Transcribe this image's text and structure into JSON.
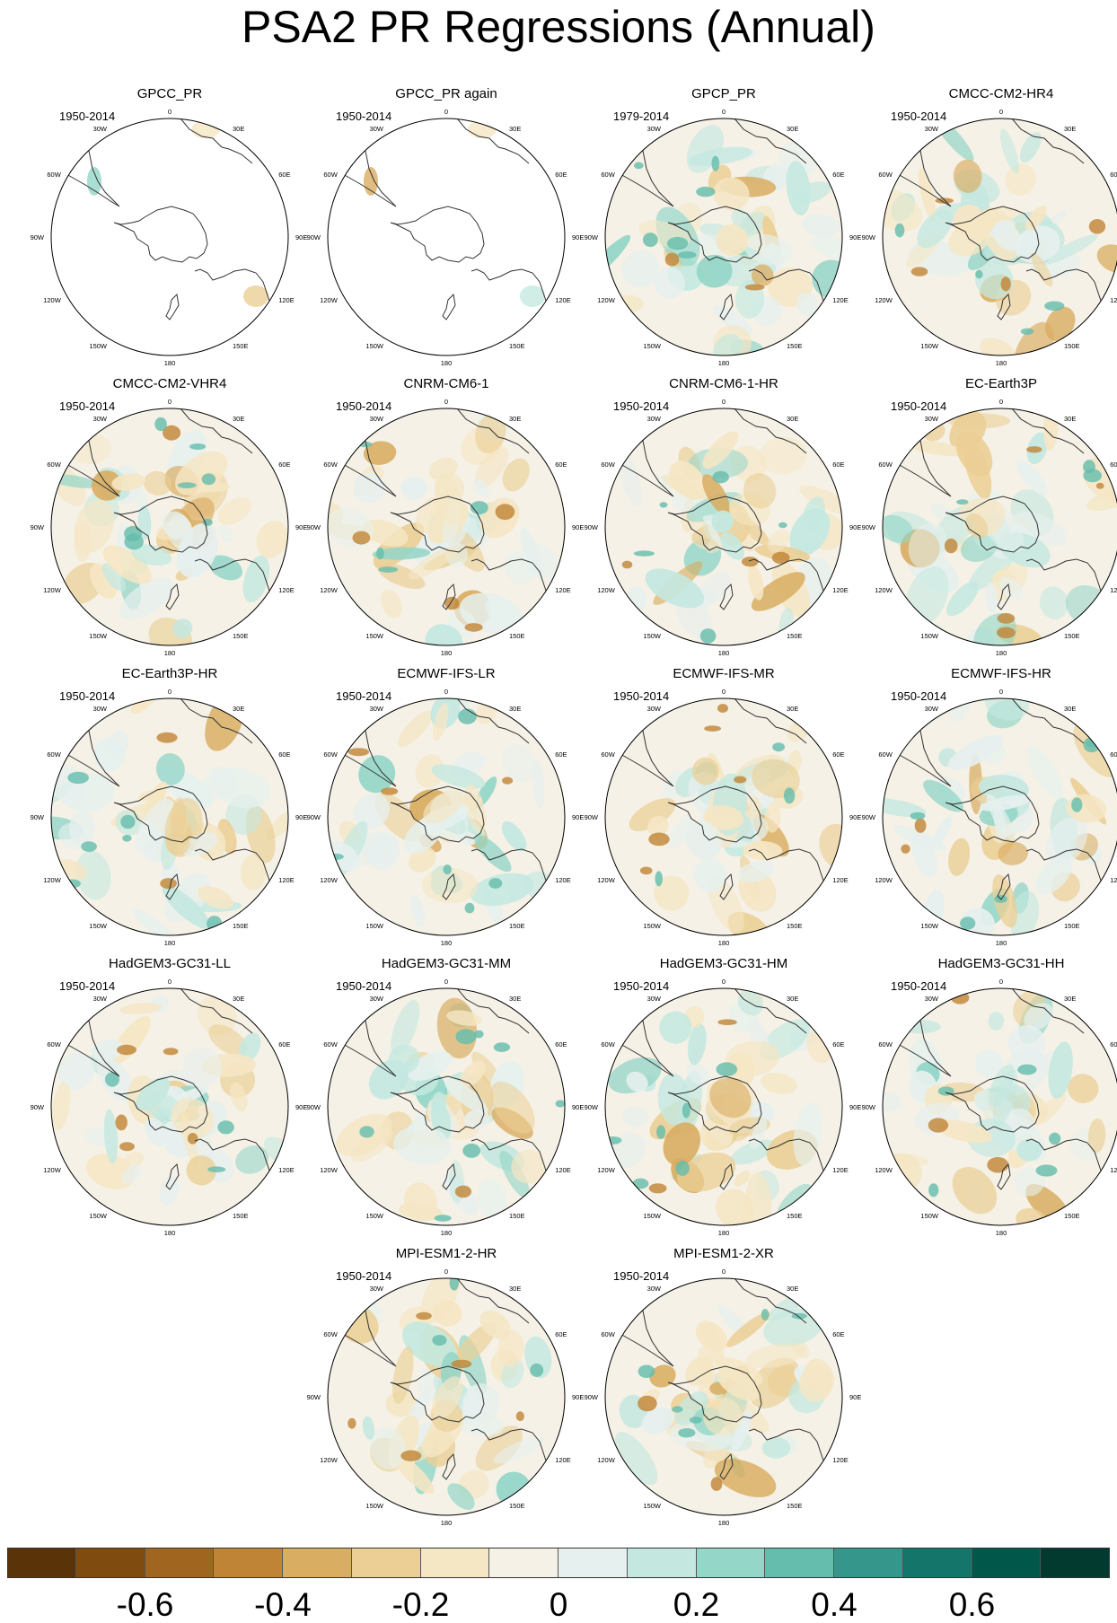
{
  "title": "PSA2 PR Regressions (Annual)",
  "longitude_labels": [
    "0",
    "30E",
    "60E",
    "90E",
    "120E",
    "150E",
    "180",
    "150W",
    "120W",
    "90W",
    "60W",
    "30W"
  ],
  "panels": [
    {
      "name": "GPCC_PR",
      "period": "1950-2014",
      "field": "land_only"
    },
    {
      "name": "GPCC_PR again",
      "period": "1950-2014",
      "field": "land_only"
    },
    {
      "name": "GPCP_PR",
      "period": "1979-2014",
      "field": "full"
    },
    {
      "name": "CMCC-CM2-HR4",
      "period": "1950-2014",
      "field": "full"
    },
    {
      "name": "CMCC-CM2-VHR4",
      "period": "1950-2014",
      "field": "full"
    },
    {
      "name": "CNRM-CM6-1",
      "period": "1950-2014",
      "field": "full"
    },
    {
      "name": "CNRM-CM6-1-HR",
      "period": "1950-2014",
      "field": "full"
    },
    {
      "name": "EC-Earth3P",
      "period": "1950-2014",
      "field": "full"
    },
    {
      "name": "EC-Earth3P-HR",
      "period": "1950-2014",
      "field": "full"
    },
    {
      "name": "ECMWF-IFS-LR",
      "period": "1950-2014",
      "field": "full"
    },
    {
      "name": "ECMWF-IFS-MR",
      "period": "1950-2014",
      "field": "full"
    },
    {
      "name": "ECMWF-IFS-HR",
      "period": "1950-2014",
      "field": "full"
    },
    {
      "name": "HadGEM3-GC31-LL",
      "period": "1950-2014",
      "field": "full"
    },
    {
      "name": "HadGEM3-GC31-MM",
      "period": "1950-2014",
      "field": "full"
    },
    {
      "name": "HadGEM3-GC31-HM",
      "period": "1950-2014",
      "field": "full"
    },
    {
      "name": "HadGEM3-GC31-HH",
      "period": "1950-2014",
      "field": "full"
    },
    {
      "name": "MPI-ESM1-2-HR",
      "period": "1950-2014",
      "field": "full"
    },
    {
      "name": "MPI-ESM1-2-XR",
      "period": "1950-2014",
      "field": "full"
    }
  ],
  "colorbar": {
    "colors": [
      "#5a3408",
      "#7f4b0e",
      "#a0661f",
      "#c08436",
      "#d9ad62",
      "#ebcf95",
      "#f5e6c4",
      "#f5f1e6",
      "#e6f0ee",
      "#c4e8e0",
      "#94d6c8",
      "#64bdad",
      "#35968b",
      "#14756b",
      "#00574a",
      "#023a30"
    ],
    "tick_labels": [
      "-0.6",
      "-0.4",
      "-0.2",
      "0",
      "0.2",
      "0.4",
      "0.6"
    ],
    "tick_values": [
      -0.6,
      -0.4,
      -0.2,
      0,
      0.2,
      0.4,
      0.6
    ],
    "range": [
      -0.8,
      0.8
    ]
  }
}
